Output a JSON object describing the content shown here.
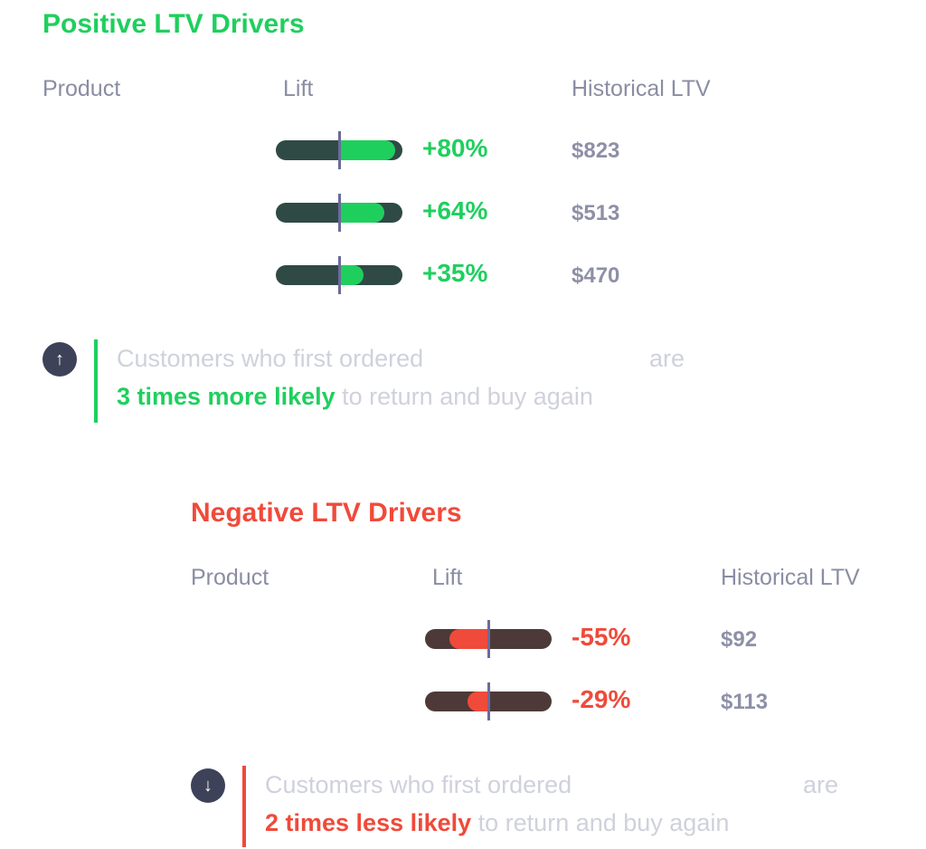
{
  "positive": {
    "title": "Positive LTV Drivers",
    "color": "#1fcf5e",
    "track_color": "#2f4a45",
    "headers": {
      "product": "Product",
      "lift": "Lift",
      "ltv": "Historical LTV"
    },
    "rows": [
      {
        "lift_label": "+80%",
        "ltv_label": "$823"
      },
      {
        "lift_label": "+64%",
        "ltv_label": "$513"
      },
      {
        "lift_label": "+35%",
        "ltv_label": "$470"
      }
    ],
    "callout": {
      "icon": "arrow-up-icon",
      "icon_glyph": "↑",
      "line1": "Customers who first ordered",
      "line1_end": "are",
      "highlight": "3 times more likely",
      "line2_rest": " to return and buy again"
    }
  },
  "negative": {
    "title": "Negative LTV Drivers",
    "color": "#f04a3a",
    "track_color": "#4d3a38",
    "headers": {
      "product": "Product",
      "lift": "Lift",
      "ltv": "Historical LTV"
    },
    "rows": [
      {
        "lift_label": "-55%",
        "ltv_label": "$92"
      },
      {
        "lift_label": "-29%",
        "ltv_label": "$113"
      }
    ],
    "callout": {
      "icon": "arrow-down-icon",
      "icon_glyph": "↓",
      "line1": "Customers who first ordered",
      "line1_end": "are",
      "highlight": "2 times less likely",
      "line2_rest": " to return and buy again"
    }
  },
  "chart_data": [
    {
      "type": "bar",
      "title": "Positive LTV Drivers",
      "categories": [
        "",
        "",
        ""
      ],
      "series": [
        {
          "name": "Lift",
          "values": [
            80,
            64,
            35
          ]
        },
        {
          "name": "Historical LTV",
          "values": [
            823,
            513,
            470
          ]
        }
      ],
      "ylabel": "Lift"
    },
    {
      "type": "bar",
      "title": "Negative LTV Drivers",
      "categories": [
        "",
        ""
      ],
      "series": [
        {
          "name": "Lift",
          "values": [
            -55,
            -29
          ]
        },
        {
          "name": "Historical LTV",
          "values": [
            92,
            113
          ]
        }
      ],
      "ylabel": "Lift"
    }
  ]
}
